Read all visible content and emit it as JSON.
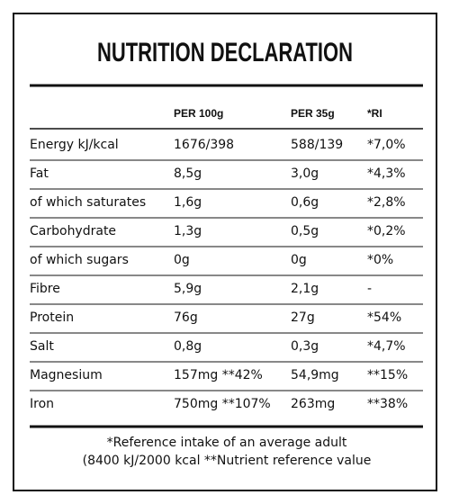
{
  "header": {
    "title": "NUTRITION DECLARATION"
  },
  "table": {
    "columns": [
      "PER 100g",
      "PER 35g",
      "*RI"
    ],
    "rows": [
      [
        "Energy kJ/kcal",
        "1676/398",
        "588/139",
        "*7,0%"
      ],
      [
        "Fat",
        "8,5g",
        "3,0g",
        "*4,3%"
      ],
      [
        "of which saturates",
        "1,6g",
        "0,6g",
        "*2,8%"
      ],
      [
        "Carbohydrate",
        "1,3g",
        "0,5g",
        "*0,2%"
      ],
      [
        "of which sugars",
        "0g",
        "0g",
        "*0%"
      ],
      [
        "Fibre",
        "5,9g",
        "2,1g",
        "-"
      ],
      [
        "Protein",
        "76g",
        "27g",
        "*54%"
      ],
      [
        "Salt",
        "0,8g",
        "0,3g",
        "*4,7%"
      ],
      [
        "Magnesium",
        "157mg **42%",
        "54,9mg",
        "**15%"
      ],
      [
        "Iron",
        "750mg **107%",
        "263mg",
        "**38%"
      ]
    ]
  },
  "footnote": [
    "*Reference intake of an average adult",
    "(8400 kJ/2000 kcal **Nutrient reference value"
  ]
}
